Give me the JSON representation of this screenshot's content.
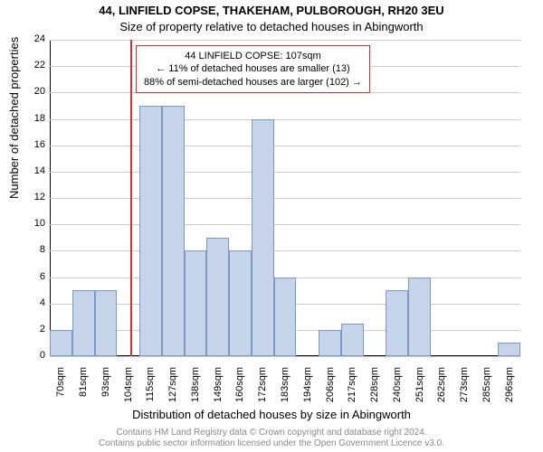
{
  "chart": {
    "type": "histogram",
    "title_main": "44, LINFIELD COPSE, THAKEHAM, PULBOROUGH, RH20 3EU",
    "title_sub": "Size of property relative to detached houses in Abingworth",
    "y_axis_label": "Number of detached properties",
    "x_axis_label": "Distribution of detached houses by size in Abingworth",
    "ylim": [
      0,
      24
    ],
    "ytick_step": 2,
    "yticks": [
      0,
      2,
      4,
      6,
      8,
      10,
      12,
      14,
      16,
      18,
      20,
      22,
      24
    ],
    "xticks": [
      "70sqm",
      "81sqm",
      "93sqm",
      "104sqm",
      "115sqm",
      "127sqm",
      "138sqm",
      "149sqm",
      "160sqm",
      "172sqm",
      "183sqm",
      "194sqm",
      "206sqm",
      "217sqm",
      "228sqm",
      "240sqm",
      "251sqm",
      "262sqm",
      "273sqm",
      "285sqm",
      "296sqm"
    ],
    "bars": [
      2,
      5,
      5,
      0,
      19,
      19,
      8,
      9,
      8,
      18,
      6,
      0,
      2,
      2.5,
      0,
      5,
      6,
      0,
      0,
      0,
      1
    ],
    "bar_fill": "#c6d4ea",
    "bar_stroke": "#7a99c9",
    "grid_color": "#cccccc",
    "background_color": "#ffffff",
    "marker_line_color": "#cc3333",
    "marker_position_index": 3.6,
    "legend": {
      "line1": "44 LINFIELD COPSE: 107sqm",
      "line2": "← 11% of detached houses are smaller (13)",
      "line3": "88% of semi-detached houses are larger (102) →",
      "border_color": "#cc3333"
    },
    "footer_line1": "Contains HM Land Registry data © Crown copyright and database right 2024.",
    "footer_line2": "Contains public sector information licensed under the Open Government Licence v3.0.",
    "footer_color": "#888888",
    "title_fontsize": 13,
    "label_fontsize": 13,
    "tick_fontsize": 11,
    "legend_fontsize": 11,
    "footer_fontsize": 10
  }
}
